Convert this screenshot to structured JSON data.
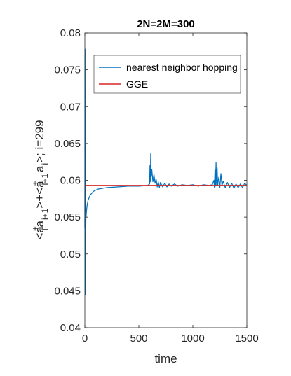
{
  "chart_data": {
    "type": "line",
    "title": "2N=2M=300",
    "xlabel": "time",
    "ylabel": {
      "i_label": "i",
      "i_plus_1_label": "i+1",
      "dagger_label": "+",
      "a_label": "a",
      "open_angle": "<",
      "close_angle": ">",
      "plus_text": "+",
      "tail_text": "; i=299"
    },
    "xlim": [
      0,
      1500
    ],
    "ylim": [
      0.04,
      0.08
    ],
    "xticks": [
      "0",
      "500",
      "1000",
      "1500"
    ],
    "xtick_values": [
      0,
      500,
      1000,
      1500
    ],
    "yticks": [
      "0.04",
      "0.045",
      "0.05",
      "0.055",
      "0.06",
      "0.065",
      "0.07",
      "0.075",
      "0.08"
    ],
    "ytick_values": [
      0.04,
      0.045,
      0.05,
      0.055,
      0.06,
      0.065,
      0.07,
      0.075,
      0.08
    ],
    "grid": false,
    "legend_position": "top",
    "series": [
      {
        "name": "nearest neighbor hopping",
        "color": "#0072BD",
        "x": [
          0,
          2,
          4,
          6,
          8,
          10,
          14,
          20,
          30,
          50,
          80,
          120,
          200,
          300,
          400,
          500,
          580,
          600,
          603,
          606,
          610,
          615,
          620,
          630,
          640,
          650,
          660,
          670,
          680,
          690,
          700,
          720,
          740,
          760,
          780,
          800,
          830,
          860,
          900,
          950,
          1000,
          1050,
          1100,
          1150,
          1180,
          1195,
          1200,
          1205,
          1210,
          1215,
          1220,
          1225,
          1230,
          1240,
          1250,
          1260,
          1270,
          1280,
          1300,
          1320,
          1340,
          1360,
          1380,
          1400,
          1420,
          1440,
          1460,
          1480,
          1500
        ],
        "y": [
          0.0535,
          0.0778,
          0.0445,
          0.0568,
          0.0525,
          0.0548,
          0.0556,
          0.0565,
          0.0573,
          0.058,
          0.0585,
          0.0588,
          0.059,
          0.0591,
          0.0592,
          0.0592,
          0.0593,
          0.0595,
          0.062,
          0.0598,
          0.0636,
          0.0605,
          0.0615,
          0.0598,
          0.0608,
          0.0596,
          0.0602,
          0.0591,
          0.0598,
          0.059,
          0.0597,
          0.0591,
          0.0596,
          0.0591,
          0.0595,
          0.0592,
          0.0595,
          0.0592,
          0.0594,
          0.0593,
          0.0594,
          0.0592,
          0.0594,
          0.0593,
          0.0594,
          0.06,
          0.059,
          0.0615,
          0.0592,
          0.0624,
          0.0593,
          0.0617,
          0.0593,
          0.0604,
          0.059,
          0.0609,
          0.0592,
          0.0599,
          0.059,
          0.0597,
          0.059,
          0.0596,
          0.0589,
          0.0595,
          0.059,
          0.0595,
          0.059,
          0.0596,
          0.0593
        ]
      },
      {
        "name": "GGE",
        "color": "#D62728",
        "x": [
          0,
          1500
        ],
        "y": [
          0.0593,
          0.0593
        ]
      }
    ]
  }
}
